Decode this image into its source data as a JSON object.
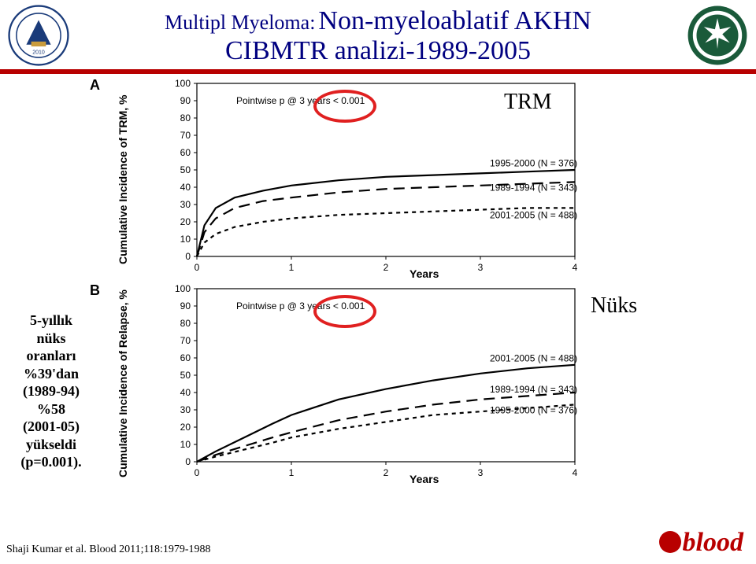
{
  "title": {
    "prefix": "Multipl Myeloma:",
    "main1": "Non-myeloablatif AKHN",
    "main2": "CIBMTR analizi-1989-2005"
  },
  "annotations": {
    "trm": "TRM",
    "nuks": "Nüks"
  },
  "side_note": {
    "l1": "5-yıllık",
    "l2": "nüks",
    "l3": "oranları",
    "l4": "%39'dan",
    "l5": "(1989-94)",
    "l6": "%58",
    "l7": "(2001-05)",
    "l8": "yükseldi",
    "l9": "(p=0.001)."
  },
  "chart_a": {
    "panel": "A",
    "ylabel": "Cumulative Incidence of TRM, %",
    "xlabel": "Years",
    "pvalue": "Pointwise p @ 3 years < 0.001",
    "x_ticks": [
      0,
      1,
      2,
      3,
      4
    ],
    "y_ticks": [
      0,
      10,
      20,
      30,
      40,
      50,
      60,
      70,
      80,
      90,
      100
    ],
    "xlim": [
      0,
      4
    ],
    "ylim": [
      0,
      100
    ],
    "series": [
      {
        "label": "1995-2000 (N = 376)",
        "style": "solid",
        "pts": [
          [
            0,
            0
          ],
          [
            0.08,
            18
          ],
          [
            0.2,
            28
          ],
          [
            0.4,
            34
          ],
          [
            0.7,
            38
          ],
          [
            1,
            41
          ],
          [
            1.5,
            44
          ],
          [
            2,
            46
          ],
          [
            2.5,
            47
          ],
          [
            3,
            48
          ],
          [
            3.5,
            49
          ],
          [
            4,
            50
          ]
        ],
        "label_x": 3.1,
        "label_y": 52
      },
      {
        "label": "1989-1994 (N = 343)",
        "style": "dash-long",
        "pts": [
          [
            0,
            0
          ],
          [
            0.08,
            14
          ],
          [
            0.2,
            22
          ],
          [
            0.4,
            28
          ],
          [
            0.7,
            32
          ],
          [
            1,
            34
          ],
          [
            1.5,
            37
          ],
          [
            2,
            39
          ],
          [
            2.5,
            40
          ],
          [
            3,
            41
          ],
          [
            3.5,
            42
          ],
          [
            4,
            43
          ]
        ],
        "label_x": 3.1,
        "label_y": 38
      },
      {
        "label": "2001-2005 (N = 488)",
        "style": "dash-short",
        "pts": [
          [
            0,
            0
          ],
          [
            0.08,
            8
          ],
          [
            0.2,
            13
          ],
          [
            0.4,
            17
          ],
          [
            0.7,
            20
          ],
          [
            1,
            22
          ],
          [
            1.5,
            24
          ],
          [
            2,
            25
          ],
          [
            2.5,
            26
          ],
          [
            3,
            27
          ],
          [
            3.5,
            28
          ],
          [
            4,
            28
          ]
        ],
        "label_x": 3.1,
        "label_y": 22
      }
    ]
  },
  "chart_b": {
    "panel": "B",
    "ylabel": "Cumulative Incidence of Relapse, %",
    "xlabel": "Years",
    "pvalue": "Pointwise p @ 3 years < 0.001",
    "x_ticks": [
      0,
      1,
      2,
      3,
      4
    ],
    "y_ticks": [
      0,
      10,
      20,
      30,
      40,
      50,
      60,
      70,
      80,
      90,
      100
    ],
    "xlim": [
      0,
      4
    ],
    "ylim": [
      0,
      100
    ],
    "series": [
      {
        "label": "2001-2005 (N = 488)",
        "style": "solid",
        "pts": [
          [
            0,
            0
          ],
          [
            0.2,
            6
          ],
          [
            0.5,
            14
          ],
          [
            0.8,
            22
          ],
          [
            1,
            27
          ],
          [
            1.5,
            36
          ],
          [
            2,
            42
          ],
          [
            2.5,
            47
          ],
          [
            3,
            51
          ],
          [
            3.5,
            54
          ],
          [
            4,
            56
          ]
        ],
        "label_x": 3.1,
        "label_y": 58
      },
      {
        "label": "1989-1994 (N = 343)",
        "style": "dash-long",
        "pts": [
          [
            0,
            0
          ],
          [
            0.2,
            4
          ],
          [
            0.5,
            9
          ],
          [
            0.8,
            14
          ],
          [
            1,
            17
          ],
          [
            1.5,
            24
          ],
          [
            2,
            29
          ],
          [
            2.5,
            33
          ],
          [
            3,
            36
          ],
          [
            3.5,
            38
          ],
          [
            4,
            40
          ]
        ],
        "label_x": 3.1,
        "label_y": 40
      },
      {
        "label": "1995-2000 (N = 376)",
        "style": "dash-short",
        "pts": [
          [
            0,
            0
          ],
          [
            0.2,
            3
          ],
          [
            0.5,
            7
          ],
          [
            0.8,
            11
          ],
          [
            1,
            14
          ],
          [
            1.5,
            19
          ],
          [
            2,
            23
          ],
          [
            2.5,
            27
          ],
          [
            3,
            29
          ],
          [
            3.5,
            31
          ],
          [
            4,
            33
          ]
        ],
        "label_x": 3.1,
        "label_y": 28
      }
    ]
  },
  "reference": "Shaji Kumar et al. Blood 2011;118:1979-1988",
  "journal": "blood",
  "colors": {
    "title": "#000080",
    "rule": "#b80000",
    "oval": "#e02020"
  }
}
